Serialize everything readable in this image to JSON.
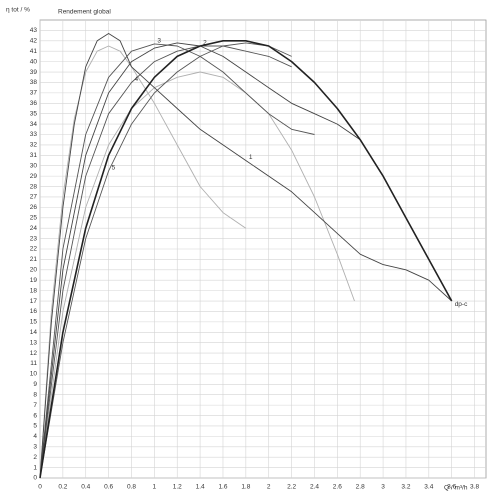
{
  "chart_data": {
    "type": "line",
    "title": "Rendement global",
    "y_label": "η tot / %",
    "x_label": "Q / m³/h",
    "xlim": [
      0,
      3.9
    ],
    "ylim": [
      0,
      44
    ],
    "xticks": [
      0,
      0.2,
      0.4,
      0.6,
      0.8,
      1,
      1.2,
      1.4,
      1.6,
      1.8,
      2,
      2.2,
      2.4,
      2.6,
      2.8,
      3,
      3.2,
      3.4,
      3.6,
      3.8
    ],
    "yticks": [
      0,
      1,
      2,
      3,
      4,
      5,
      6,
      7,
      8,
      9,
      10,
      11,
      12,
      13,
      14,
      15,
      16,
      17,
      18,
      19,
      20,
      21,
      22,
      23,
      24,
      25,
      26,
      27,
      28,
      29,
      30,
      31,
      32,
      33,
      34,
      35,
      36,
      37,
      38,
      39,
      40,
      41,
      42,
      43
    ],
    "grid": true,
    "series": [
      {
        "color": "#b0b0b0",
        "x": [
          0,
          0.1,
          0.2,
          0.3,
          0.4,
          0.5,
          0.6,
          0.7,
          0.8,
          1.0,
          1.2,
          1.4,
          1.6,
          1.8
        ],
        "values": [
          0,
          16,
          27,
          34.5,
          39,
          41,
          41.5,
          41,
          39.5,
          36,
          32,
          28,
          25.5,
          24
        ]
      },
      {
        "color": "#b0b0b0",
        "x": [
          0,
          0.2,
          0.4,
          0.6,
          0.8,
          1.0,
          1.2,
          1.4,
          1.6,
          1.8,
          2.0,
          2.2,
          2.4,
          2.6,
          2.75
        ],
        "values": [
          0,
          16,
          26,
          32,
          35.5,
          37.5,
          38.5,
          39,
          38.5,
          37,
          35,
          31.5,
          27,
          21.5,
          17
        ]
      },
      {
        "name": "5",
        "color": "#555555",
        "x": [
          0,
          0.2,
          0.4,
          0.6,
          0.8,
          1.0,
          1.2,
          1.4,
          1.6,
          1.8,
          2.0,
          2.2
        ],
        "values": [
          0,
          13,
          23,
          29.5,
          34,
          37,
          39,
          40.5,
          41.5,
          41.8,
          41.5,
          40.5
        ]
      },
      {
        "name": "4",
        "color": "#555555",
        "x": [
          0,
          0.2,
          0.4,
          0.6,
          0.8,
          1.0,
          1.2,
          1.4,
          1.6,
          1.8,
          2.0,
          2.2
        ],
        "values": [
          0,
          18,
          29,
          35,
          38,
          40,
          41,
          41.5,
          41.5,
          41,
          40.5,
          39.5
        ]
      },
      {
        "name": "3",
        "color": "#555555",
        "x": [
          0,
          0.2,
          0.4,
          0.6,
          0.8,
          1.0,
          1.2,
          1.4,
          1.6,
          1.8,
          2.0,
          2.2,
          2.4
        ],
        "values": [
          0,
          22,
          33,
          38.5,
          41,
          41.7,
          41.5,
          40.5,
          39,
          37,
          35,
          33.5,
          33
        ]
      },
      {
        "name": "2",
        "color": "#444444",
        "x": [
          0,
          0.2,
          0.4,
          0.6,
          0.8,
          1.0,
          1.2,
          1.4,
          1.6,
          1.8,
          2.0,
          2.2,
          2.4,
          2.6,
          2.8,
          3.0,
          3.2,
          3.4,
          3.6
        ],
        "values": [
          0,
          20,
          31,
          37,
          40,
          41.3,
          41.8,
          41.5,
          40.5,
          39,
          37.5,
          36,
          35,
          34,
          32.5,
          29,
          25,
          21,
          17
        ]
      },
      {
        "name": "1",
        "color": "#444444",
        "x": [
          0,
          0.1,
          0.2,
          0.3,
          0.4,
          0.5,
          0.6,
          0.7,
          0.8,
          1.0,
          1.2,
          1.4,
          1.6,
          1.8,
          2.0,
          2.2,
          2.4,
          2.6,
          2.8,
          3.0,
          3.2,
          3.4,
          3.6
        ],
        "values": [
          0,
          15,
          26,
          34,
          39.5,
          42,
          42.7,
          42,
          39.5,
          37.5,
          35.5,
          33.5,
          32,
          30.5,
          29,
          27.5,
          25.5,
          23.5,
          21.5,
          20.5,
          20,
          19,
          17
        ]
      },
      {
        "name": "dp-c",
        "color": "#222222",
        "x": [
          0,
          0.2,
          0.4,
          0.6,
          0.8,
          1.0,
          1.2,
          1.4,
          1.6,
          1.8,
          2.0,
          2.2,
          2.4,
          2.6,
          2.8,
          3.0,
          3.2,
          3.4,
          3.6
        ],
        "values": [
          0,
          14,
          24,
          31,
          35.5,
          38.5,
          40.5,
          41.5,
          42,
          42,
          41.5,
          40,
          38,
          35.5,
          32.5,
          29,
          25,
          21,
          17
        ]
      }
    ]
  }
}
